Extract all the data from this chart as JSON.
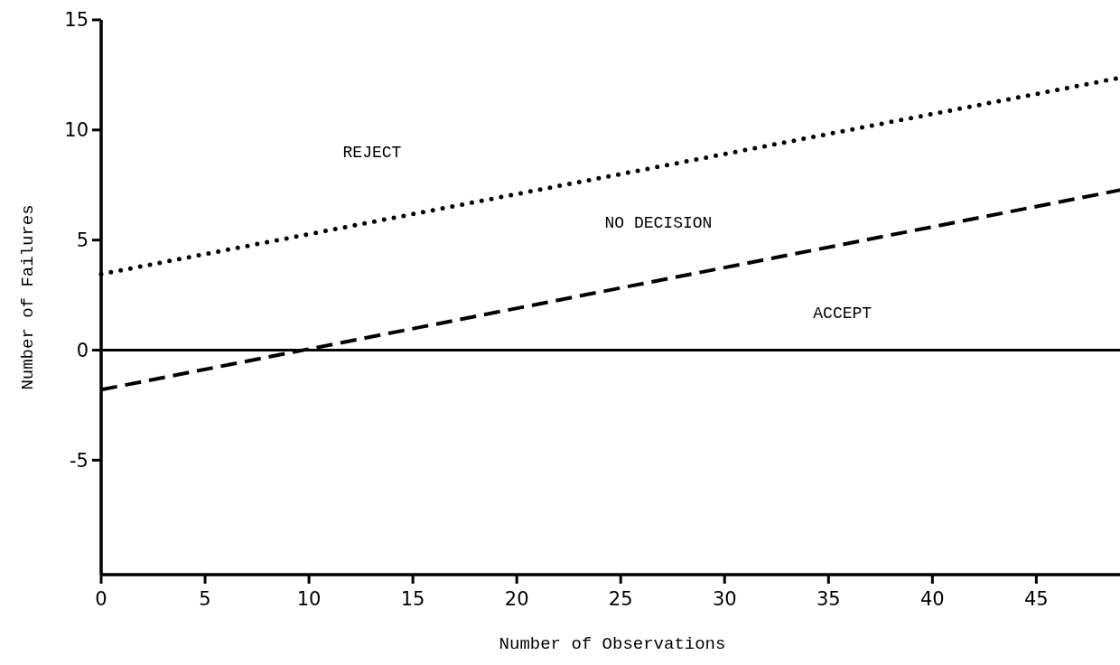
{
  "chart_data": {
    "type": "line",
    "xlabel": "Number of Observations",
    "ylabel": "Number of Failures",
    "xlim": [
      0,
      49.2
    ],
    "ylim": [
      -10.2,
      15
    ],
    "xticks": [
      0,
      5,
      10,
      15,
      20,
      25,
      30,
      35,
      40,
      45
    ],
    "yticks": [
      -5,
      0,
      5,
      10,
      15
    ],
    "grid": false,
    "marker": "none",
    "x": [
      0,
      49.2
    ],
    "series": [
      {
        "color": "#000000",
        "values": [
          3.45,
          12.4
        ],
        "line_style": "dotted"
      },
      {
        "color": "#000000",
        "values": [
          -1.8,
          7.3
        ],
        "line_style": "dashed"
      }
    ],
    "ref_lines": [
      {
        "axis": "y",
        "value": 0,
        "color": "#000000",
        "line_style": "solid"
      }
    ],
    "annotations": [
      "REJECT",
      "NO DECISION",
      "ACCEPT"
    ]
  }
}
